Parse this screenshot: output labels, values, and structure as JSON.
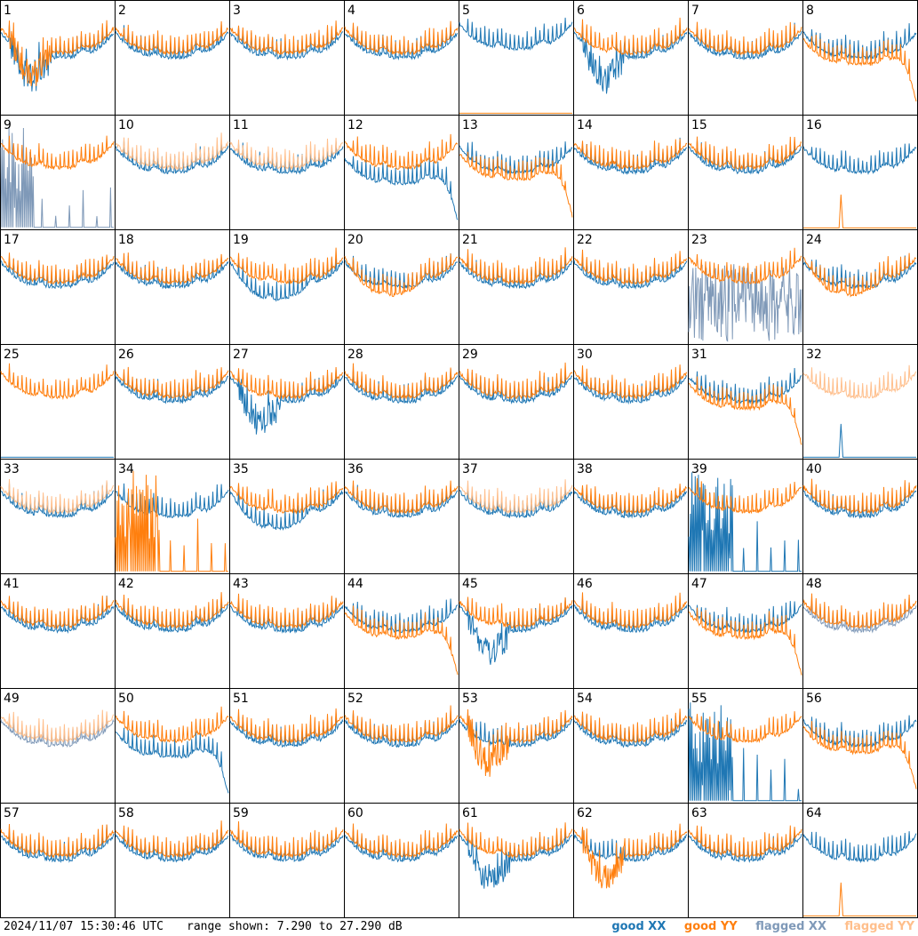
{
  "chart_data": {
    "type": "line",
    "layout": "8x8 small multiples",
    "panel_labels": [
      "1",
      "2",
      "3",
      "4",
      "5",
      "6",
      "7",
      "8",
      "9",
      "10",
      "11",
      "12",
      "13",
      "14",
      "15",
      "16",
      "17",
      "18",
      "19",
      "20",
      "21",
      "22",
      "23",
      "24",
      "25",
      "26",
      "27",
      "28",
      "29",
      "30",
      "31",
      "32",
      "33",
      "34",
      "35",
      "36",
      "37",
      "38",
      "39",
      "40",
      "41",
      "42",
      "43",
      "44",
      "45",
      "46",
      "47",
      "48",
      "49",
      "50",
      "51",
      "52",
      "53",
      "54",
      "55",
      "56",
      "57",
      "58",
      "59",
      "60",
      "61",
      "62",
      "63",
      "64"
    ],
    "ylim_db": [
      7.29,
      27.29
    ],
    "x_axis": "frequency channel (unlabeled)",
    "grid": false,
    "legend_position": "bottom-right",
    "series": [
      {
        "name": "good XX",
        "color": "#1f77b4"
      },
      {
        "name": "good YY",
        "color": "#ff7f0e"
      },
      {
        "name": "flagged XX",
        "color": "#7f99b8"
      },
      {
        "name": "flagged YY",
        "color": "#ffbf8c"
      }
    ],
    "panel_styles": {
      "1": {
        "x": "dip",
        "y": "dip"
      },
      "5": {
        "x": "high",
        "y": "floor"
      },
      "6": {
        "x": "dip",
        "y": "normal"
      },
      "8": {
        "x": "normal",
        "y": "droop"
      },
      "9": {
        "x": "flagspikes",
        "y": "normal"
      },
      "10": {
        "x": "normal",
        "y": "flagged"
      },
      "11": {
        "x": "normal",
        "y": "flagged"
      },
      "12": {
        "x": "droop",
        "y": "normal"
      },
      "13": {
        "x": "normal",
        "y": "droop"
      },
      "16": {
        "x": "normal",
        "y": "floorspike"
      },
      "19": {
        "x": "low",
        "y": "normal"
      },
      "20": {
        "x": "normal",
        "y": "low"
      },
      "23": {
        "x": "flagnoise",
        "y": "normal"
      },
      "24": {
        "x": "normal",
        "y": "low"
      },
      "25": {
        "x": "floor",
        "y": "normal"
      },
      "27": {
        "x": "dip",
        "y": "normal"
      },
      "31": {
        "x": "normal",
        "y": "droop"
      },
      "32": {
        "x": "floorspike",
        "y": "flagged"
      },
      "33": {
        "x": "normal",
        "y": "flagged"
      },
      "34": {
        "x": "normal",
        "y": "spikes"
      },
      "35": {
        "x": "low",
        "y": "normal"
      },
      "37": {
        "x": "normal",
        "y": "flagged"
      },
      "39": {
        "x": "spikes",
        "y": "normal"
      },
      "44": {
        "x": "normal",
        "y": "droop"
      },
      "45": {
        "x": "dip",
        "y": "normal"
      },
      "47": {
        "x": "normal",
        "y": "droop"
      },
      "48": {
        "x": "flagged",
        "y": "normal"
      },
      "49": {
        "x": "flagged",
        "y": "flagged"
      },
      "50": {
        "x": "droop",
        "y": "normal"
      },
      "53": {
        "x": "normal",
        "y": "dip"
      },
      "55": {
        "x": "spikes",
        "y": "normal"
      },
      "56": {
        "x": "normal",
        "y": "droop"
      },
      "61": {
        "x": "dip",
        "y": "normal"
      },
      "62": {
        "x": "normal",
        "y": "dip"
      },
      "64": {
        "x": "normal",
        "y": "floorspike"
      }
    }
  },
  "footer": {
    "timestamp": "2024/11/07 15:30:46 UTC",
    "range_text": "range shown: 7.290 to 27.290 dB"
  },
  "legend": {
    "good_xx": "good XX",
    "good_yy": "good YY",
    "flagged_xx": "flagged XX",
    "flagged_yy": "flagged YY"
  }
}
